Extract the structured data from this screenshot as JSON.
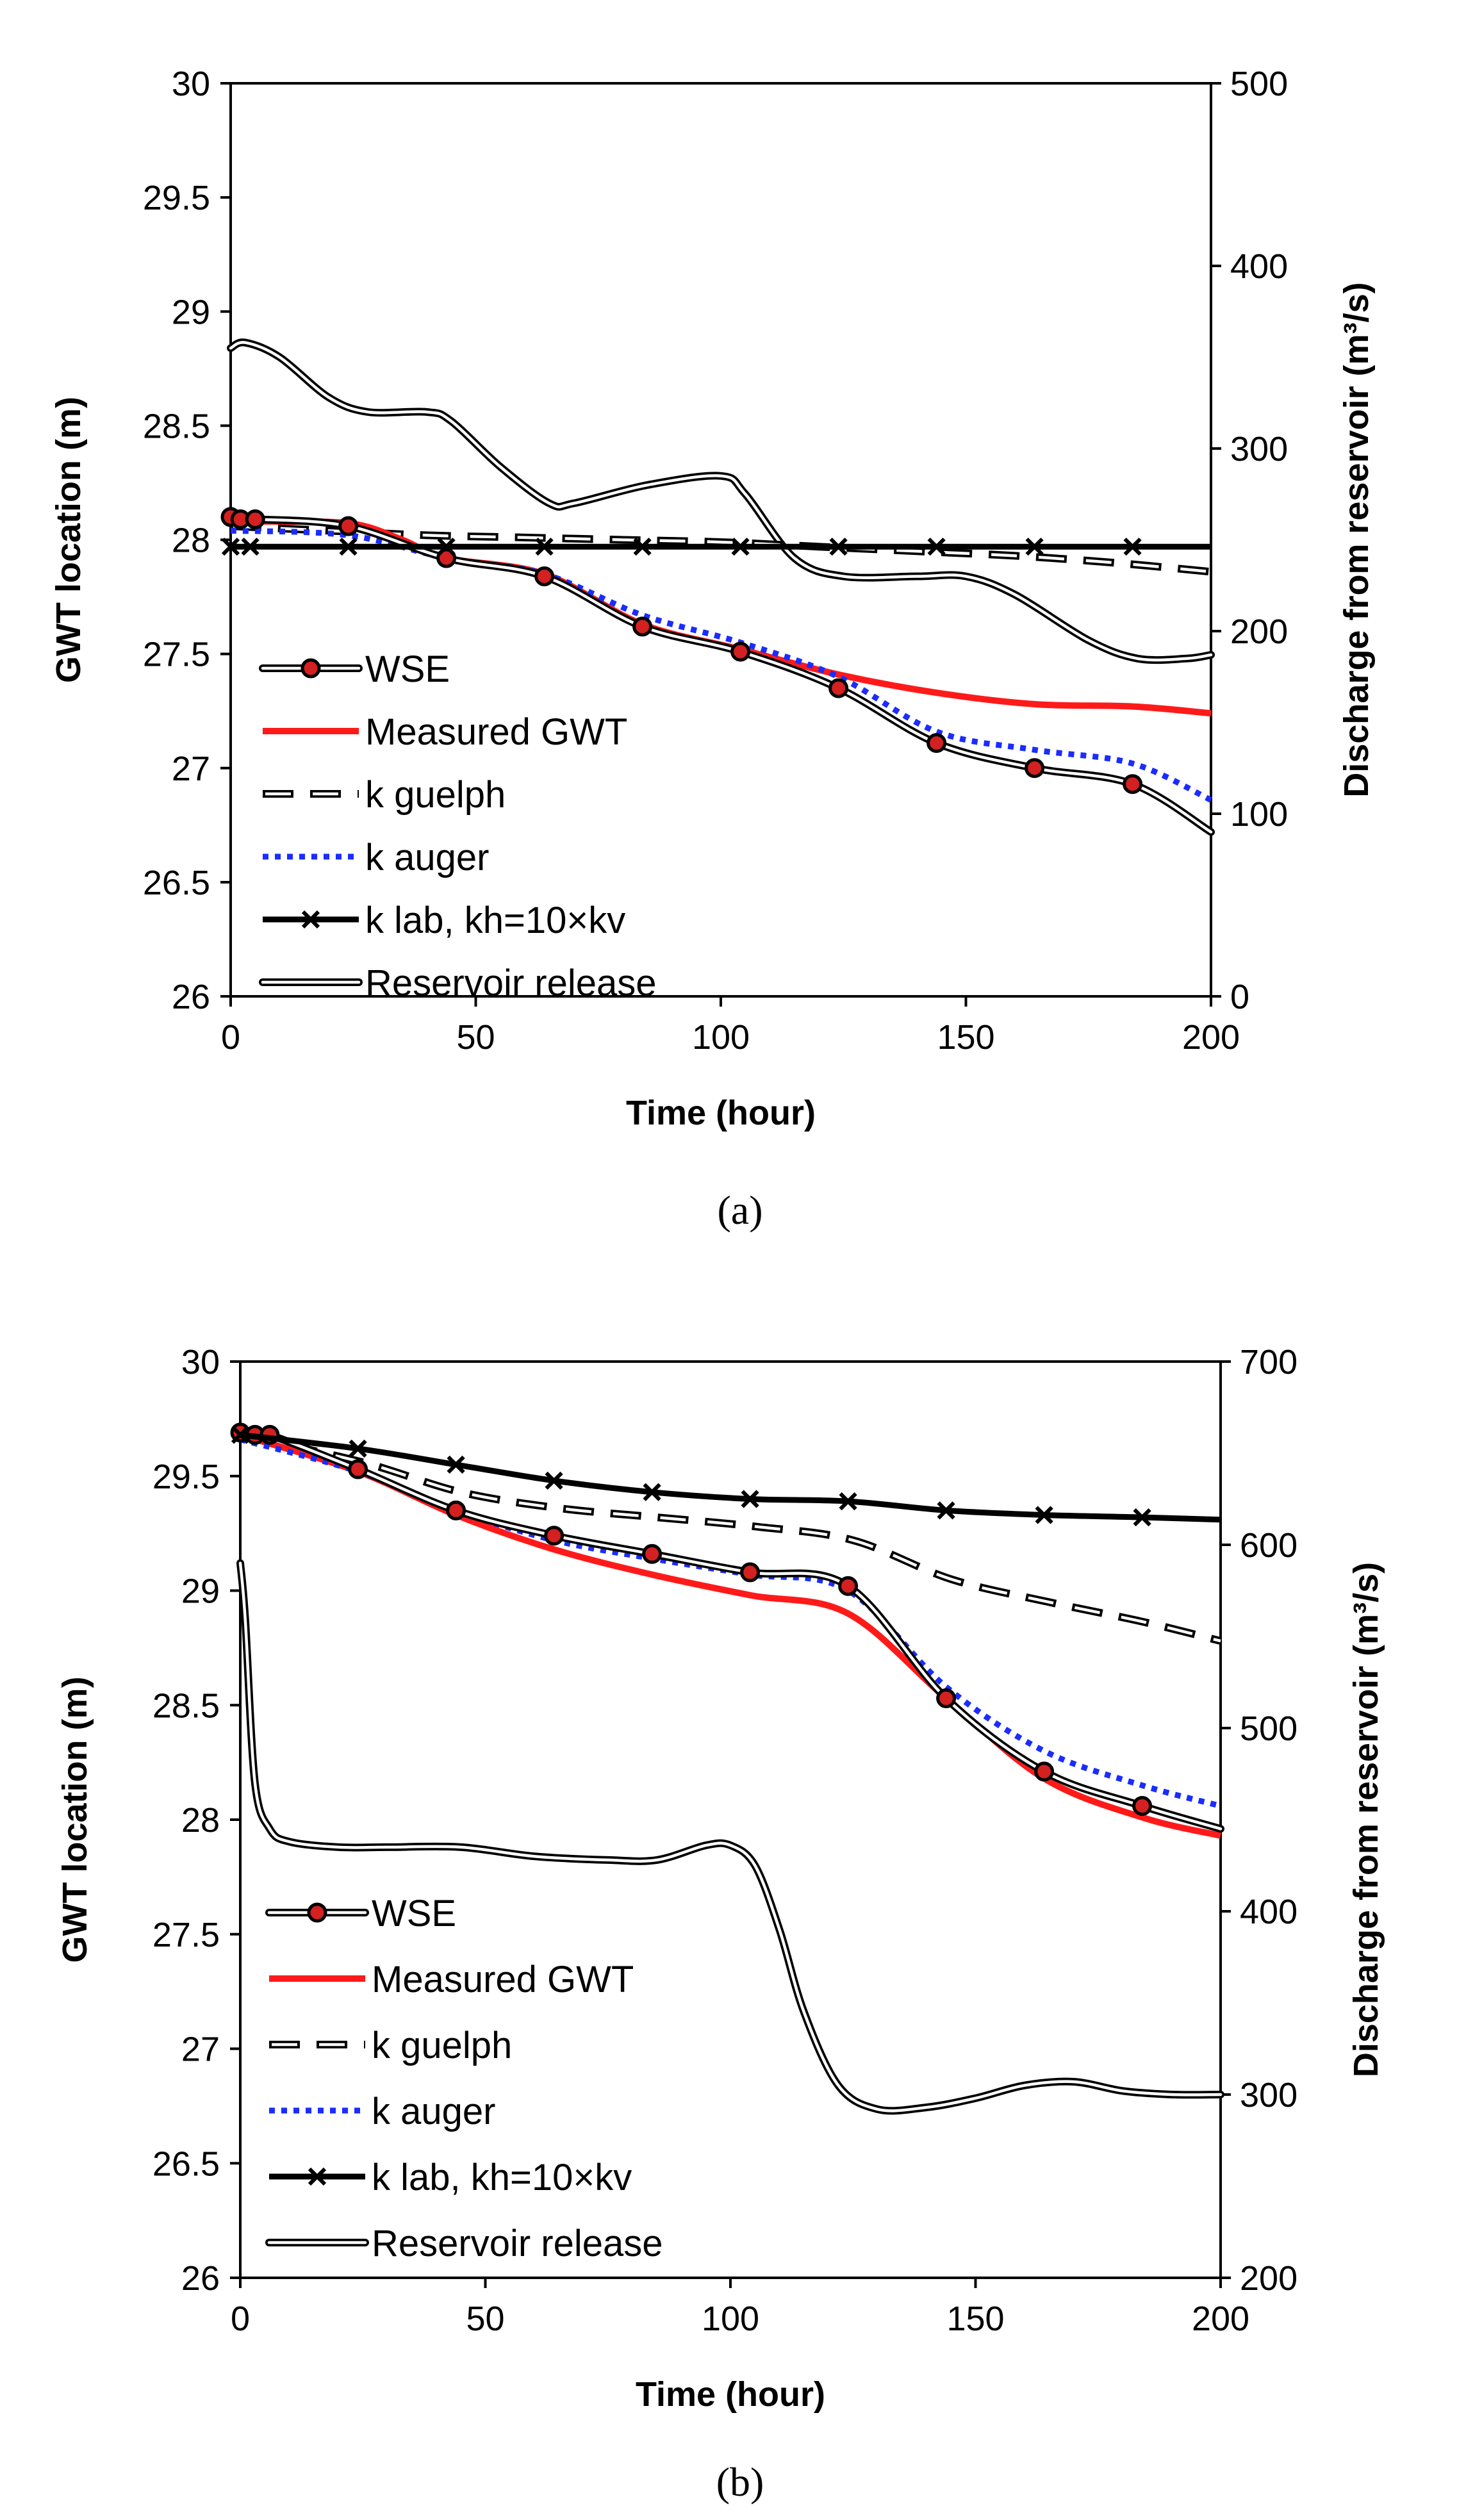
{
  "figure_labels": {
    "a": "(a)",
    "b": "(b)"
  },
  "colors": {
    "wse": "#000000",
    "wse_marker": "#d32020",
    "measured": "#ff1a1a",
    "guelph": "#000000",
    "auger": "#1a2cff",
    "lab": "#000000",
    "release": "#000000"
  },
  "legend": [
    "WSE",
    "Measured GWT",
    "k guelph",
    "k auger",
    "k lab, kh=10×kv",
    "Reservoir release"
  ],
  "chart_data": [
    {
      "type": "line",
      "panel": "a",
      "xlabel": "Time (hour)",
      "ylabel": "GWT location (m)",
      "y2label": "Discharge from reservoir (m³/s)",
      "xlim": [
        0,
        200
      ],
      "ylim": [
        26,
        30
      ],
      "y2lim": [
        0,
        500
      ],
      "xticks": [
        0,
        50,
        100,
        150,
        200
      ],
      "yticks": [
        26,
        26.5,
        27,
        27.5,
        28,
        28.5,
        29,
        29.5,
        30
      ],
      "y2ticks": [
        0,
        100,
        200,
        300,
        400,
        500
      ],
      "series": [
        {
          "name": "WSE",
          "axis": "left",
          "style": "wse",
          "x": [
            0,
            2,
            5,
            24,
            44,
            64,
            84,
            104,
            124,
            144,
            164,
            184,
            200
          ],
          "y": [
            28.1,
            28.09,
            28.09,
            28.06,
            27.92,
            27.84,
            27.62,
            27.51,
            27.35,
            27.11,
            27.0,
            26.93,
            26.72
          ],
          "markers_x": [
            0,
            2,
            5,
            24,
            44,
            64,
            84,
            104,
            124,
            144,
            164,
            184
          ]
        },
        {
          "name": "Measured GWT",
          "axis": "left",
          "style": "measured",
          "x": [
            0,
            10,
            25,
            35,
            44,
            64,
            84,
            104,
            124,
            144,
            164,
            184,
            200
          ],
          "y": [
            28.08,
            28.08,
            28.07,
            28.0,
            27.92,
            27.85,
            27.63,
            27.52,
            27.41,
            27.33,
            27.28,
            27.27,
            27.24
          ]
        },
        {
          "name": "k guelph",
          "axis": "left",
          "style": "guelph",
          "x": [
            0,
            20,
            40,
            60,
            80,
            100,
            120,
            140,
            160,
            180,
            200
          ],
          "y": [
            28.06,
            28.04,
            28.02,
            28.01,
            28.0,
            27.99,
            27.97,
            27.95,
            27.93,
            27.9,
            27.86
          ]
        },
        {
          "name": "k auger",
          "axis": "left",
          "style": "auger",
          "x": [
            0,
            24,
            44,
            64,
            84,
            104,
            124,
            144,
            164,
            184,
            200
          ],
          "y": [
            28.04,
            28.02,
            27.92,
            27.85,
            27.67,
            27.55,
            27.4,
            27.16,
            27.08,
            27.02,
            26.86
          ]
        },
        {
          "name": "k lab, kh=10×kv",
          "axis": "left",
          "style": "lab",
          "x": [
            0,
            200
          ],
          "y": [
            27.97,
            27.97
          ],
          "markers_x": [
            0,
            4,
            24,
            44,
            64,
            84,
            104,
            124,
            144,
            164,
            184
          ]
        },
        {
          "name": "Reservoir release",
          "axis": "right",
          "style": "release",
          "x": [
            0,
            3,
            10,
            20,
            28,
            40,
            45,
            55,
            65,
            70,
            85,
            100,
            105,
            115,
            125,
            140,
            150,
            160,
            175,
            185,
            195,
            200
          ],
          "y": [
            355,
            358,
            350,
            328,
            320,
            320,
            315,
            290,
            270,
            270,
            280,
            285,
            275,
            240,
            230,
            230,
            230,
            220,
            195,
            185,
            185,
            187
          ]
        }
      ]
    },
    {
      "type": "line",
      "panel": "b",
      "xlabel": "Time (hour)",
      "ylabel": "GWT location (m)",
      "y2label": "Discharge from reservoir (m³/s)",
      "xlim": [
        0,
        200
      ],
      "ylim": [
        26,
        30
      ],
      "y2lim": [
        200,
        700
      ],
      "xticks": [
        0,
        50,
        100,
        150,
        200
      ],
      "yticks": [
        26,
        26.5,
        27,
        27.5,
        28,
        28.5,
        29,
        29.5,
        30
      ],
      "y2ticks": [
        200,
        300,
        400,
        500,
        600,
        700
      ],
      "series": [
        {
          "name": "WSE",
          "axis": "left",
          "style": "wse",
          "x": [
            0,
            3,
            6,
            24,
            44,
            64,
            84,
            104,
            124,
            144,
            164,
            184,
            200
          ],
          "y": [
            29.69,
            29.68,
            29.68,
            29.53,
            29.35,
            29.24,
            29.16,
            29.08,
            29.02,
            28.53,
            28.21,
            28.06,
            27.96
          ],
          "markers_x": [
            0,
            3,
            6,
            24,
            44,
            64,
            84,
            104,
            124,
            144,
            164,
            184
          ]
        },
        {
          "name": "Measured GWT",
          "axis": "left",
          "style": "measured",
          "x": [
            0,
            24,
            44,
            64,
            84,
            104,
            124,
            144,
            164,
            184,
            200
          ],
          "y": [
            29.68,
            29.52,
            29.33,
            29.18,
            29.07,
            28.98,
            28.9,
            28.53,
            28.18,
            28.01,
            27.93
          ]
        },
        {
          "name": "k guelph",
          "axis": "left",
          "style": "guelph",
          "x": [
            0,
            25,
            45,
            65,
            85,
            105,
            125,
            145,
            165,
            185,
            200
          ],
          "y": [
            29.68,
            29.56,
            29.43,
            29.36,
            29.32,
            29.28,
            29.22,
            29.05,
            28.95,
            28.86,
            28.78
          ]
        },
        {
          "name": "k auger",
          "axis": "left",
          "style": "auger",
          "x": [
            0,
            24,
            44,
            64,
            84,
            104,
            124,
            144,
            164,
            184,
            200
          ],
          "y": [
            29.66,
            29.52,
            29.35,
            29.22,
            29.14,
            29.07,
            29.0,
            28.58,
            28.3,
            28.15,
            28.06
          ]
        },
        {
          "name": "k lab, kh=10×kv",
          "axis": "left",
          "style": "lab",
          "x": [
            0,
            24,
            44,
            64,
            84,
            104,
            124,
            144,
            164,
            184,
            200
          ],
          "y": [
            29.68,
            29.62,
            29.55,
            29.48,
            29.43,
            29.4,
            29.39,
            29.35,
            29.33,
            29.32,
            29.31
          ],
          "markers_x": [
            0,
            24,
            44,
            64,
            84,
            104,
            124,
            144,
            164,
            184
          ]
        },
        {
          "name": "Reservoir release",
          "axis": "right",
          "style": "release",
          "x": [
            0,
            1,
            3,
            6,
            10,
            20,
            30,
            45,
            60,
            75,
            85,
            95,
            100,
            105,
            110,
            115,
            122,
            130,
            140,
            150,
            160,
            170,
            180,
            190,
            200
          ],
          "y": [
            590,
            560,
            470,
            445,
            438,
            435,
            435,
            435,
            430,
            428,
            428,
            436,
            436,
            425,
            390,
            345,
            305,
            292,
            293,
            298,
            305,
            307,
            302,
            300,
            300
          ]
        }
      ]
    }
  ]
}
